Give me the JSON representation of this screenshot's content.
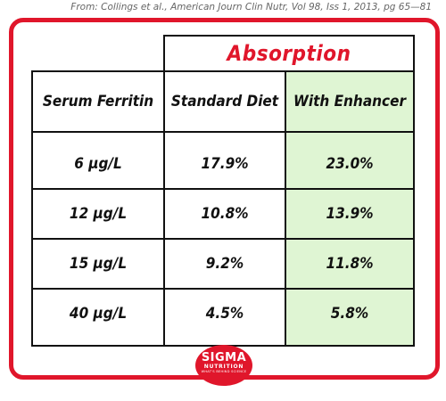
{
  "source": "From: Collings et al., American Journ Clin Nutr, Vol 98, Iss 1, 2013, pg 65—81",
  "table": {
    "group_header": "Absorption",
    "columns": [
      "Serum Ferritin",
      "Standard Diet",
      "With Enhancer"
    ],
    "rows": [
      [
        "6 µg/L",
        "17.9%",
        "23.0%"
      ],
      [
        "12 µg/L",
        "10.8%",
        "13.9%"
      ],
      [
        "15 µg/L",
        "9.2%",
        "11.8%"
      ],
      [
        "40 µg/L",
        "4.5%",
        "5.8%"
      ]
    ]
  },
  "logo": {
    "line1": "SIGMA",
    "line2": "NUTRITION",
    "line3": "WHAT'S BEHIND SCIENCE"
  },
  "colors": {
    "accent": "#e0162b",
    "highlight": "#dff5d3"
  }
}
